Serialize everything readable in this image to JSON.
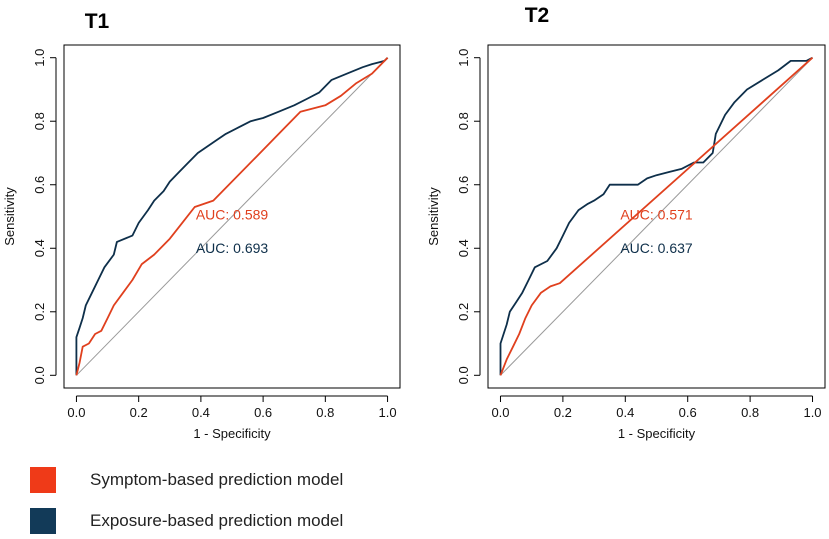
{
  "chart_data": [
    {
      "type": "line",
      "title": "T1",
      "xlabel": "1 - Specificity",
      "ylabel": "Sensitivity",
      "xlim": [
        0,
        1
      ],
      "ylim": [
        0,
        1
      ],
      "xticks": [
        "0.0",
        "0.2",
        "0.4",
        "0.6",
        "0.8",
        "1.0"
      ],
      "yticks": [
        "0.0",
        "0.2",
        "0.4",
        "0.6",
        "0.8",
        "1.0"
      ],
      "reference_line": [
        [
          0,
          0
        ],
        [
          1,
          1
        ]
      ],
      "annotations": [
        {
          "text": "AUC: 0.589",
          "series": "symptom",
          "x": 0.5,
          "y": 0.49
        },
        {
          "text": "AUC: 0.693",
          "series": "exposure",
          "x": 0.5,
          "y": 0.385
        }
      ],
      "series": [
        {
          "name": "Exposure-based prediction model",
          "key": "exposure",
          "points": [
            [
              0,
              0
            ],
            [
              0,
              0.12
            ],
            [
              0.01,
              0.15
            ],
            [
              0.02,
              0.18
            ],
            [
              0.03,
              0.22
            ],
            [
              0.05,
              0.26
            ],
            [
              0.07,
              0.3
            ],
            [
              0.09,
              0.34
            ],
            [
              0.12,
              0.38
            ],
            [
              0.13,
              0.42
            ],
            [
              0.18,
              0.44
            ],
            [
              0.2,
              0.48
            ],
            [
              0.23,
              0.52
            ],
            [
              0.25,
              0.55
            ],
            [
              0.28,
              0.58
            ],
            [
              0.3,
              0.61
            ],
            [
              0.33,
              0.64
            ],
            [
              0.36,
              0.67
            ],
            [
              0.39,
              0.7
            ],
            [
              0.42,
              0.72
            ],
            [
              0.45,
              0.74
            ],
            [
              0.48,
              0.76
            ],
            [
              0.52,
              0.78
            ],
            [
              0.56,
              0.8
            ],
            [
              0.6,
              0.81
            ],
            [
              0.65,
              0.83
            ],
            [
              0.7,
              0.85
            ],
            [
              0.74,
              0.87
            ],
            [
              0.78,
              0.89
            ],
            [
              0.82,
              0.93
            ],
            [
              0.87,
              0.95
            ],
            [
              0.92,
              0.97
            ],
            [
              0.95,
              0.98
            ],
            [
              0.99,
              0.99
            ],
            [
              1,
              1
            ]
          ]
        },
        {
          "name": "Symptom-based prediction model",
          "key": "symptom",
          "points": [
            [
              0,
              0
            ],
            [
              0.01,
              0.04
            ],
            [
              0.02,
              0.09
            ],
            [
              0.04,
              0.1
            ],
            [
              0.06,
              0.13
            ],
            [
              0.08,
              0.14
            ],
            [
              0.1,
              0.18
            ],
            [
              0.12,
              0.22
            ],
            [
              0.15,
              0.26
            ],
            [
              0.18,
              0.3
            ],
            [
              0.21,
              0.35
            ],
            [
              0.25,
              0.38
            ],
            [
              0.3,
              0.43
            ],
            [
              0.34,
              0.48
            ],
            [
              0.38,
              0.53
            ],
            [
              0.44,
              0.55
            ],
            [
              0.58,
              0.69
            ],
            [
              0.72,
              0.83
            ],
            [
              0.8,
              0.85
            ],
            [
              0.85,
              0.88
            ],
            [
              0.9,
              0.92
            ],
            [
              0.95,
              0.95
            ],
            [
              1,
              1
            ]
          ]
        }
      ]
    },
    {
      "type": "line",
      "title": "T2",
      "xlabel": "1 - Specificity",
      "ylabel": "Sensitivity",
      "xlim": [
        0,
        1
      ],
      "ylim": [
        0,
        1
      ],
      "xticks": [
        "0.0",
        "0.2",
        "0.4",
        "0.6",
        "0.8",
        "1.0"
      ],
      "yticks": [
        "0.0",
        "0.2",
        "0.4",
        "0.6",
        "0.8",
        "1.0"
      ],
      "reference_line": [
        [
          0,
          0
        ],
        [
          1,
          1
        ]
      ],
      "annotations": [
        {
          "text": "AUC: 0.571",
          "series": "symptom",
          "x": 0.5,
          "y": 0.49
        },
        {
          "text": "AUC: 0.637",
          "series": "exposure",
          "x": 0.5,
          "y": 0.385
        }
      ],
      "series": [
        {
          "name": "Exposure-based prediction model",
          "key": "exposure",
          "points": [
            [
              0,
              0
            ],
            [
              0,
              0.1
            ],
            [
              0.01,
              0.13
            ],
            [
              0.02,
              0.16
            ],
            [
              0.03,
              0.2
            ],
            [
              0.05,
              0.23
            ],
            [
              0.07,
              0.26
            ],
            [
              0.09,
              0.3
            ],
            [
              0.11,
              0.34
            ],
            [
              0.15,
              0.36
            ],
            [
              0.18,
              0.4
            ],
            [
              0.2,
              0.44
            ],
            [
              0.22,
              0.48
            ],
            [
              0.25,
              0.52
            ],
            [
              0.28,
              0.54
            ],
            [
              0.3,
              0.55
            ],
            [
              0.33,
              0.57
            ],
            [
              0.35,
              0.6
            ],
            [
              0.4,
              0.6
            ],
            [
              0.44,
              0.6
            ],
            [
              0.47,
              0.62
            ],
            [
              0.5,
              0.63
            ],
            [
              0.54,
              0.64
            ],
            [
              0.58,
              0.65
            ],
            [
              0.62,
              0.67
            ],
            [
              0.65,
              0.67
            ],
            [
              0.68,
              0.7
            ],
            [
              0.69,
              0.76
            ],
            [
              0.72,
              0.82
            ],
            [
              0.75,
              0.86
            ],
            [
              0.79,
              0.9
            ],
            [
              0.84,
              0.93
            ],
            [
              0.89,
              0.96
            ],
            [
              0.93,
              0.99
            ],
            [
              0.98,
              0.99
            ],
            [
              1,
              1
            ]
          ]
        },
        {
          "name": "Symptom-based prediction model",
          "key": "symptom",
          "points": [
            [
              0,
              0
            ],
            [
              0.02,
              0.05
            ],
            [
              0.04,
              0.09
            ],
            [
              0.06,
              0.13
            ],
            [
              0.08,
              0.18
            ],
            [
              0.1,
              0.22
            ],
            [
              0.13,
              0.26
            ],
            [
              0.16,
              0.28
            ],
            [
              0.19,
              0.29
            ],
            [
              1,
              1
            ]
          ]
        }
      ]
    }
  ],
  "legend": [
    {
      "label": "Symptom-based prediction model",
      "color": "#ef3a18"
    },
    {
      "label": "Exposure-based prediction model",
      "color": "#123a58"
    }
  ],
  "colors": {
    "symptom": "#e0401e",
    "exposure": "#0e2f4a",
    "reference": "#9a9a9a",
    "axis": "#000000"
  }
}
